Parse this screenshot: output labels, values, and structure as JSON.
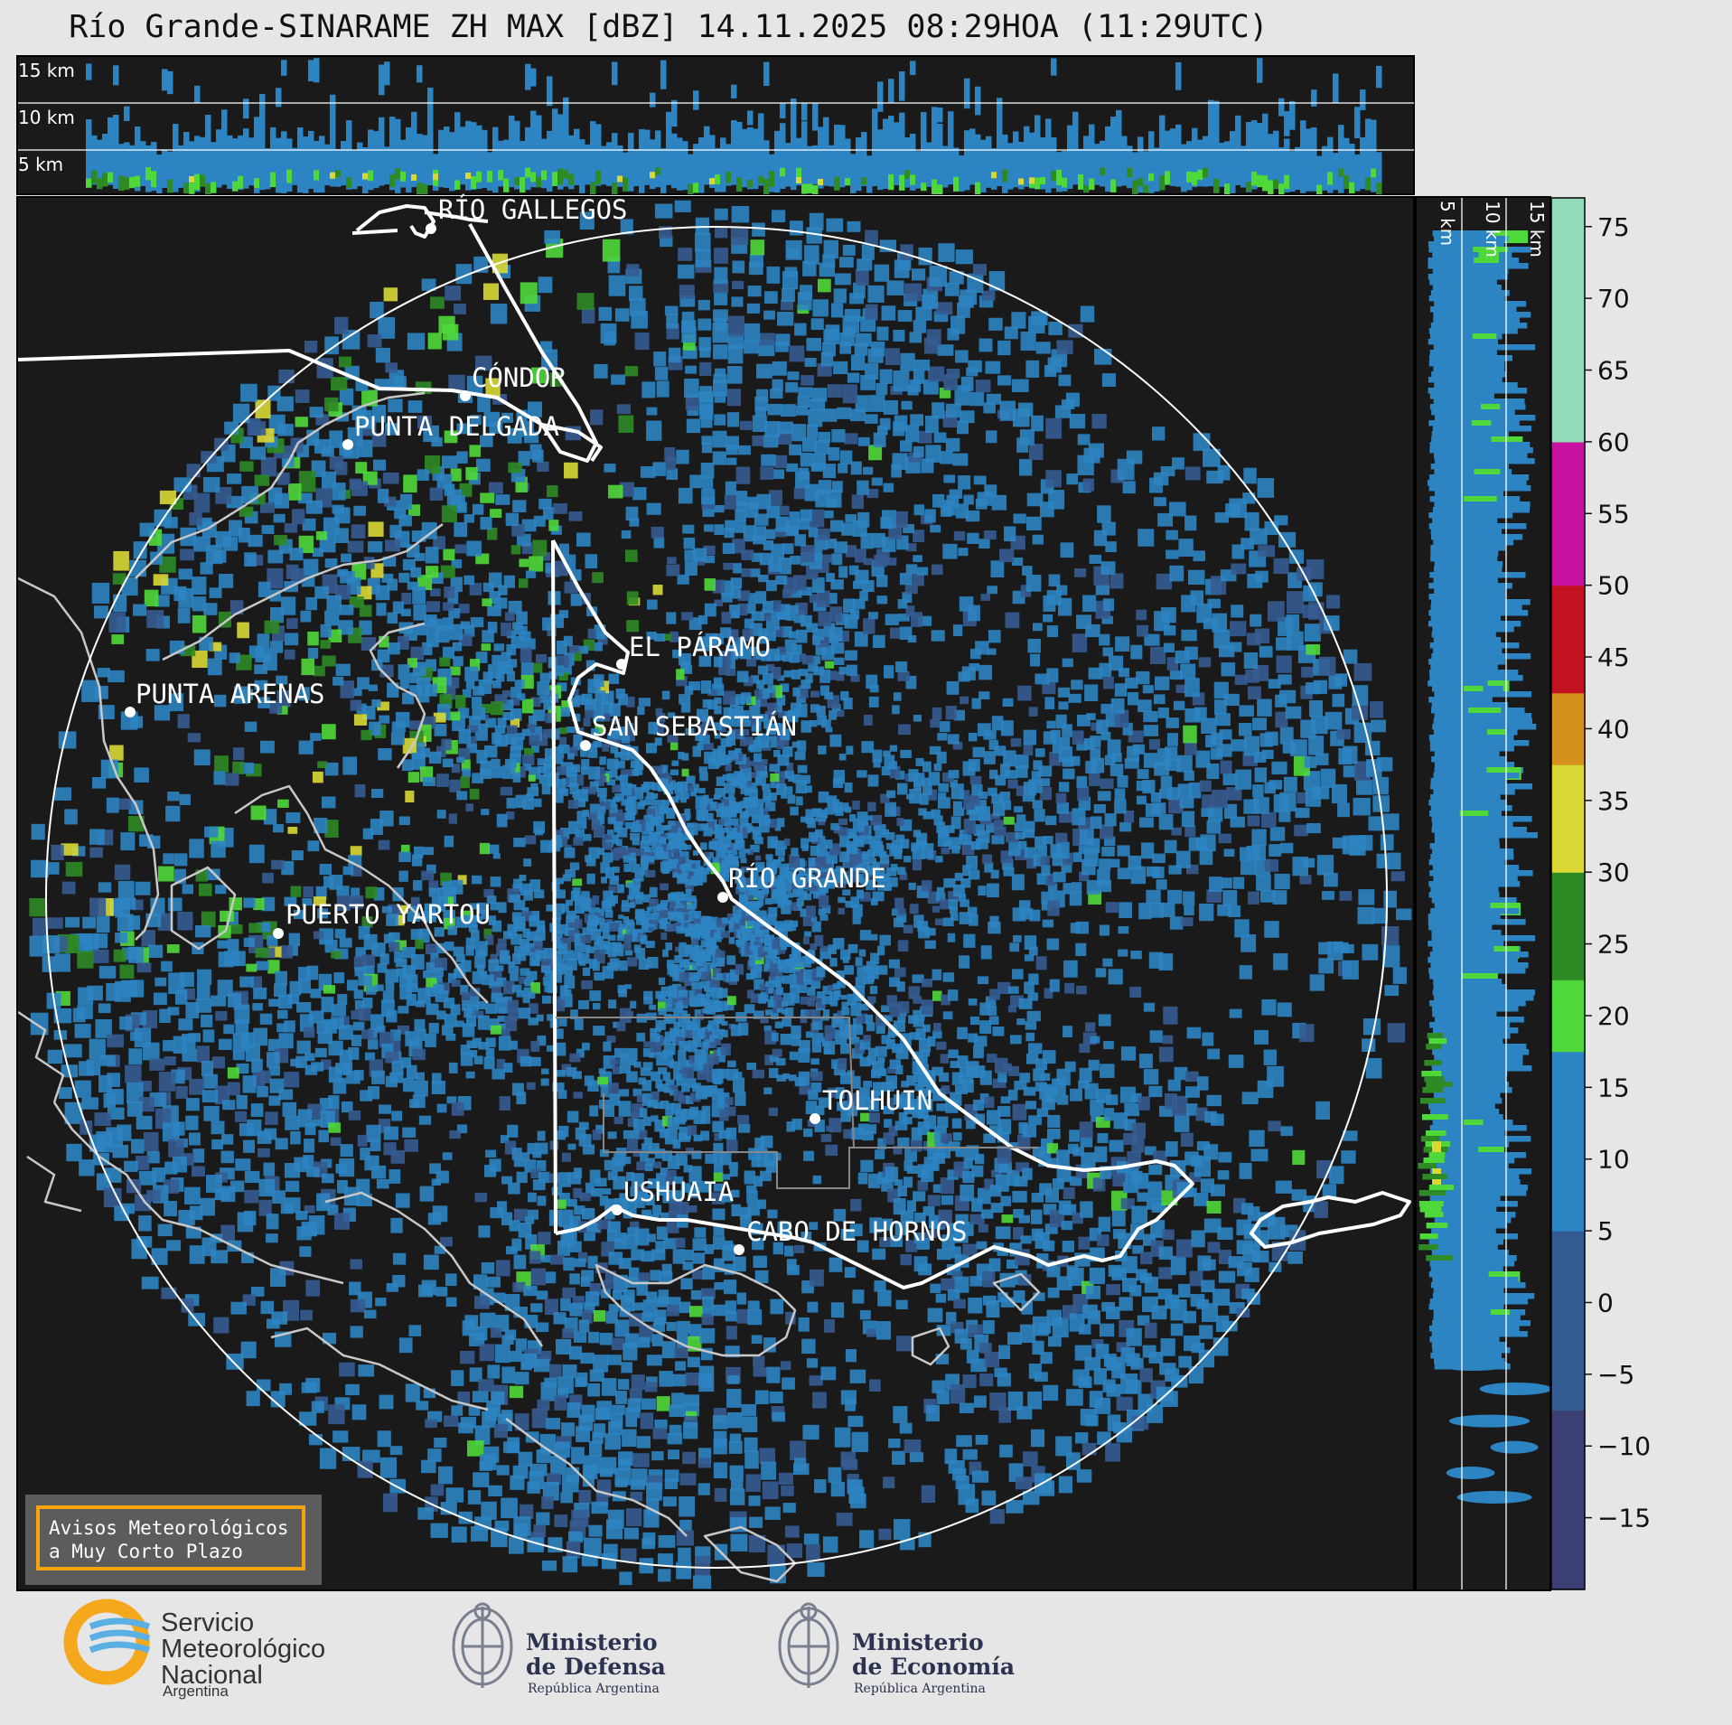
{
  "title": "Río Grande-SINARAME ZH MAX [dBZ] 14.11.2025 08:29HOA (11:29UTC)",
  "top_panel_height_labels": [
    "15 km",
    "10 km",
    "5 km"
  ],
  "side_panel_height_labels": [
    "5 km",
    "10 km",
    "15 km"
  ],
  "colorbar": {
    "ticks": [
      "75",
      "70",
      "65",
      "60",
      "55",
      "50",
      "45",
      "40",
      "35",
      "30",
      "25",
      "20",
      "15",
      "10",
      "5",
      "0",
      "−5",
      "−10",
      "−15"
    ],
    "range": [
      -20,
      77
    ],
    "bands": [
      {
        "from": -20,
        "to": -7.5,
        "color": "#3b3f72"
      },
      {
        "from": -7.5,
        "to": 5,
        "color": "#355c92"
      },
      {
        "from": 5,
        "to": 18,
        "color": "#2d84c2"
      },
      {
        "from": 18,
        "to": 23,
        "color": "#4fd83a"
      },
      {
        "from": 23,
        "to": 30,
        "color": "#2e8a25"
      },
      {
        "from": 30,
        "to": 37,
        "color": "#d9d835"
      },
      {
        "from": 37,
        "to": 43,
        "color": "#d4921c"
      },
      {
        "from": 43,
        "to": 50,
        "color": "#c2121f"
      },
      {
        "from": 50,
        "to": 59,
        "color": "#c6129e"
      },
      {
        "from": 59,
        "to": 61,
        "color": "#ffffff"
      },
      {
        "from": 61,
        "to": 77,
        "color": "#92dcbc"
      }
    ]
  },
  "map": {
    "background": "#1a1a1a",
    "coast_color": "#c8c8c8",
    "border_color": "#ffffff",
    "cities": [
      {
        "name": "RÍO GALLEGOS"
      },
      {
        "name": "CÓNDOR"
      },
      {
        "name": "PUNTA DELGADA"
      },
      {
        "name": "EL PÁRAMO"
      },
      {
        "name": "PUNTA ARENAS"
      },
      {
        "name": "SAN SEBASTIÁN"
      },
      {
        "name": "RÍO GRANDE"
      },
      {
        "name": "PUERTO YARTOU"
      },
      {
        "name": "TOLHUIN"
      },
      {
        "name": "USHUAIA"
      },
      {
        "name": "CABO DE HORNOS"
      }
    ]
  },
  "notice": {
    "line1": "Avisos Meteorológicos",
    "line2": "a Muy Corto Plazo"
  },
  "logos": {
    "smn": [
      "Servicio",
      "Meteorológico",
      "Nacional",
      "Argentina"
    ],
    "defensa": [
      "Ministerio",
      "de Defensa",
      "República Argentina"
    ],
    "economia": [
      "Ministerio",
      "de Economía",
      "República Argentina"
    ]
  }
}
